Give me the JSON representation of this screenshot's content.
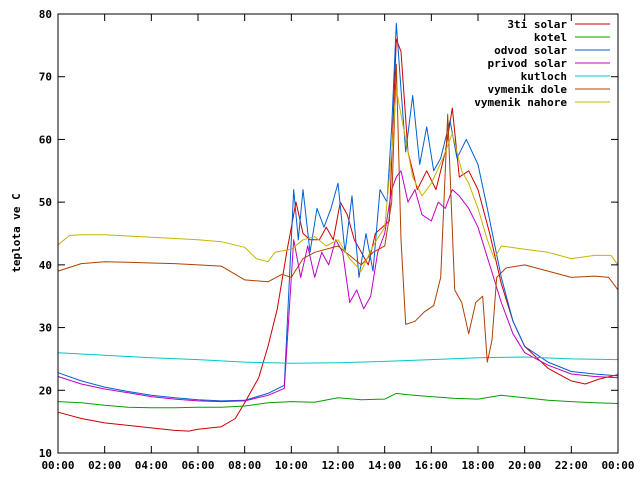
{
  "chart_data": {
    "type": "line",
    "ylabel": "teplota ve C",
    "xlabel": "",
    "x_ticks": [
      "00:00",
      "02:00",
      "04:00",
      "06:00",
      "08:00",
      "10:00",
      "12:00",
      "14:00",
      "16:00",
      "18:00",
      "20:00",
      "22:00",
      "00:00"
    ],
    "y_ticks": [
      10,
      20,
      30,
      40,
      50,
      60,
      70,
      80
    ],
    "xlim": [
      0,
      24
    ],
    "ylim": [
      10,
      80
    ],
    "grid": false,
    "legend": "top-right",
    "series": [
      {
        "name": "3ti solar",
        "color": "#cc0000",
        "points": [
          [
            0,
            16.5
          ],
          [
            1,
            15.5
          ],
          [
            2,
            14.8
          ],
          [
            3,
            14.4
          ],
          [
            4,
            14.0
          ],
          [
            5,
            13.6
          ],
          [
            5.6,
            13.5
          ],
          [
            6,
            13.8
          ],
          [
            7,
            14.2
          ],
          [
            7.6,
            15.5
          ],
          [
            8,
            18.0
          ],
          [
            8.6,
            22.0
          ],
          [
            9,
            27.0
          ],
          [
            9.4,
            33.0
          ],
          [
            9.8,
            42.0
          ],
          [
            10.2,
            50.0
          ],
          [
            10.5,
            45.0
          ],
          [
            10.8,
            44.0
          ],
          [
            11.2,
            44.0
          ],
          [
            11.5,
            46.0
          ],
          [
            11.8,
            44.0
          ],
          [
            12.1,
            50.0
          ],
          [
            12.4,
            48.0
          ],
          [
            12.7,
            44.0
          ],
          [
            13.0,
            42.0
          ],
          [
            13.3,
            40.0
          ],
          [
            13.6,
            45.0
          ],
          [
            13.9,
            46.0
          ],
          [
            14.2,
            47.0
          ],
          [
            14.5,
            76.0
          ],
          [
            14.7,
            74.0
          ],
          [
            15.0,
            58.0
          ],
          [
            15.4,
            52.0
          ],
          [
            15.8,
            55.0
          ],
          [
            16.2,
            52.0
          ],
          [
            16.6,
            58.0
          ],
          [
            16.9,
            65.0
          ],
          [
            17.2,
            54.0
          ],
          [
            17.6,
            55.0
          ],
          [
            18.0,
            52.0
          ],
          [
            18.5,
            45.0
          ],
          [
            19.0,
            37.0
          ],
          [
            19.5,
            31.0
          ],
          [
            20.0,
            27.0
          ],
          [
            21.0,
            23.5
          ],
          [
            22.0,
            21.5
          ],
          [
            22.6,
            21.0
          ],
          [
            23.2,
            21.8
          ],
          [
            24,
            22.5
          ]
        ]
      },
      {
        "name": "kotel",
        "color": "#00a000",
        "points": [
          [
            0,
            18.2
          ],
          [
            1,
            18.0
          ],
          [
            2,
            17.6
          ],
          [
            3,
            17.3
          ],
          [
            4,
            17.2
          ],
          [
            5,
            17.2
          ],
          [
            6,
            17.3
          ],
          [
            7,
            17.3
          ],
          [
            8,
            17.5
          ],
          [
            9,
            18.0
          ],
          [
            10,
            18.2
          ],
          [
            11,
            18.1
          ],
          [
            12,
            18.8
          ],
          [
            13,
            18.5
          ],
          [
            14,
            18.6
          ],
          [
            14.5,
            19.5
          ],
          [
            15,
            19.3
          ],
          [
            16,
            19.0
          ],
          [
            17,
            18.7
          ],
          [
            18,
            18.6
          ],
          [
            19,
            19.2
          ],
          [
            20,
            18.8
          ],
          [
            21,
            18.4
          ],
          [
            22,
            18.2
          ],
          [
            23,
            18.0
          ],
          [
            24,
            17.9
          ]
        ]
      },
      {
        "name": "odvod solar",
        "color": "#0060d0",
        "points": [
          [
            0,
            22.8
          ],
          [
            1,
            21.5
          ],
          [
            2,
            20.5
          ],
          [
            3,
            19.8
          ],
          [
            4,
            19.2
          ],
          [
            5,
            18.8
          ],
          [
            6,
            18.5
          ],
          [
            7,
            18.3
          ],
          [
            8,
            18.4
          ],
          [
            9,
            19.5
          ],
          [
            9.7,
            20.8
          ],
          [
            10.1,
            52.0
          ],
          [
            10.3,
            44.0
          ],
          [
            10.5,
            52.0
          ],
          [
            10.8,
            42.0
          ],
          [
            11.1,
            49.0
          ],
          [
            11.4,
            46.0
          ],
          [
            11.7,
            49.0
          ],
          [
            12.0,
            53.0
          ],
          [
            12.3,
            42.0
          ],
          [
            12.6,
            51.0
          ],
          [
            12.9,
            38.0
          ],
          [
            13.2,
            45.0
          ],
          [
            13.5,
            39.0
          ],
          [
            13.8,
            52.0
          ],
          [
            14.1,
            50.0
          ],
          [
            14.3,
            62.0
          ],
          [
            14.5,
            78.5
          ],
          [
            14.7,
            68.0
          ],
          [
            14.9,
            58.0
          ],
          [
            15.2,
            67.0
          ],
          [
            15.5,
            56.0
          ],
          [
            15.8,
            62.0
          ],
          [
            16.1,
            55.0
          ],
          [
            16.4,
            57.0
          ],
          [
            16.8,
            63.0
          ],
          [
            17.1,
            57.0
          ],
          [
            17.5,
            60.0
          ],
          [
            18.0,
            56.0
          ],
          [
            18.4,
            49.0
          ],
          [
            19.0,
            38.0
          ],
          [
            19.5,
            31.0
          ],
          [
            20.0,
            27.0
          ],
          [
            21.0,
            24.5
          ],
          [
            22.0,
            23.0
          ],
          [
            23.0,
            22.6
          ],
          [
            24,
            22.3
          ]
        ]
      },
      {
        "name": "privod solar",
        "color": "#c000c0",
        "points": [
          [
            0,
            22.2
          ],
          [
            1,
            21.0
          ],
          [
            2,
            20.2
          ],
          [
            3,
            19.6
          ],
          [
            4,
            19.0
          ],
          [
            5,
            18.6
          ],
          [
            6,
            18.3
          ],
          [
            7,
            18.2
          ],
          [
            8,
            18.3
          ],
          [
            9,
            19.2
          ],
          [
            9.7,
            20.3
          ],
          [
            10.1,
            44.0
          ],
          [
            10.4,
            38.0
          ],
          [
            10.7,
            43.0
          ],
          [
            11.0,
            38.0
          ],
          [
            11.3,
            42.0
          ],
          [
            11.6,
            40.0
          ],
          [
            11.9,
            44.0
          ],
          [
            12.2,
            42.0
          ],
          [
            12.5,
            34.0
          ],
          [
            12.8,
            36.0
          ],
          [
            13.1,
            33.0
          ],
          [
            13.4,
            35.0
          ],
          [
            13.7,
            42.0
          ],
          [
            14.0,
            45.0
          ],
          [
            14.3,
            52.0
          ],
          [
            14.5,
            54.0
          ],
          [
            14.7,
            55.0
          ],
          [
            15.0,
            50.0
          ],
          [
            15.3,
            52.0
          ],
          [
            15.6,
            48.0
          ],
          [
            16.0,
            47.0
          ],
          [
            16.3,
            50.0
          ],
          [
            16.6,
            49.0
          ],
          [
            16.9,
            52.0
          ],
          [
            17.2,
            51.0
          ],
          [
            17.6,
            49.0
          ],
          [
            18.0,
            46.0
          ],
          [
            18.5,
            40.0
          ],
          [
            19.0,
            34.0
          ],
          [
            19.5,
            29.0
          ],
          [
            20.0,
            26.0
          ],
          [
            21.0,
            24.0
          ],
          [
            22.0,
            22.6
          ],
          [
            23.0,
            22.2
          ],
          [
            24,
            22.0
          ]
        ]
      },
      {
        "name": "kutloch",
        "color": "#00c8c8",
        "points": [
          [
            0,
            26.0
          ],
          [
            2,
            25.6
          ],
          [
            4,
            25.2
          ],
          [
            6,
            24.9
          ],
          [
            8,
            24.5
          ],
          [
            10,
            24.3
          ],
          [
            12,
            24.4
          ],
          [
            14,
            24.6
          ],
          [
            16,
            24.9
          ],
          [
            18,
            25.2
          ],
          [
            20,
            25.3
          ],
          [
            22,
            25.0
          ],
          [
            24,
            24.9
          ]
        ]
      },
      {
        "name": "vymenik dole",
        "color": "#b04000",
        "points": [
          [
            0,
            39.0
          ],
          [
            1,
            40.2
          ],
          [
            2,
            40.5
          ],
          [
            3,
            40.4
          ],
          [
            4,
            40.3
          ],
          [
            5,
            40.2
          ],
          [
            6,
            40.0
          ],
          [
            7,
            39.8
          ],
          [
            8,
            37.6
          ],
          [
            9,
            37.3
          ],
          [
            9.6,
            38.5
          ],
          [
            10.0,
            38.0
          ],
          [
            10.5,
            41.0
          ],
          [
            11.0,
            42.0
          ],
          [
            12.0,
            43.0
          ],
          [
            13.0,
            40.0
          ],
          [
            13.5,
            42.0
          ],
          [
            14.0,
            43.0
          ],
          [
            14.3,
            50.0
          ],
          [
            14.5,
            72.0
          ],
          [
            14.7,
            44.0
          ],
          [
            14.9,
            30.5
          ],
          [
            15.3,
            31.0
          ],
          [
            15.7,
            32.5
          ],
          [
            16.1,
            33.5
          ],
          [
            16.4,
            38.0
          ],
          [
            16.7,
            64.0
          ],
          [
            17.0,
            36.0
          ],
          [
            17.3,
            34.0
          ],
          [
            17.6,
            29.0
          ],
          [
            17.9,
            34.0
          ],
          [
            18.2,
            35.0
          ],
          [
            18.4,
            24.5
          ],
          [
            18.6,
            28.0
          ],
          [
            18.8,
            38.0
          ],
          [
            19.2,
            39.5
          ],
          [
            20.0,
            40.0
          ],
          [
            21.0,
            39.0
          ],
          [
            22.0,
            38.0
          ],
          [
            23.0,
            38.2
          ],
          [
            23.6,
            38.0
          ],
          [
            24,
            36.0
          ]
        ]
      },
      {
        "name": "vymenik nahore",
        "color": "#c8b400",
        "points": [
          [
            0,
            43.2
          ],
          [
            0.5,
            44.7
          ],
          [
            1,
            44.8
          ],
          [
            2,
            44.8
          ],
          [
            3,
            44.6
          ],
          [
            4,
            44.4
          ],
          [
            5,
            44.2
          ],
          [
            6,
            44.0
          ],
          [
            7,
            43.7
          ],
          [
            8,
            42.8
          ],
          [
            8.5,
            41.0
          ],
          [
            9.0,
            40.5
          ],
          [
            9.3,
            42.0
          ],
          [
            10.0,
            42.5
          ],
          [
            10.5,
            44.0
          ],
          [
            11.0,
            44.5
          ],
          [
            11.5,
            43.0
          ],
          [
            12.0,
            44.0
          ],
          [
            12.5,
            41.0
          ],
          [
            13.0,
            39.0
          ],
          [
            13.5,
            43.0
          ],
          [
            14.0,
            46.0
          ],
          [
            14.3,
            58.0
          ],
          [
            14.5,
            68.0
          ],
          [
            14.8,
            62.0
          ],
          [
            15.2,
            54.0
          ],
          [
            15.6,
            51.0
          ],
          [
            16.0,
            53.0
          ],
          [
            16.5,
            57.0
          ],
          [
            16.9,
            61.0
          ],
          [
            17.3,
            55.0
          ],
          [
            17.6,
            53.0
          ],
          [
            18.0,
            49.0
          ],
          [
            18.4,
            44.0
          ],
          [
            18.7,
            41.0
          ],
          [
            19.0,
            43.0
          ],
          [
            20.0,
            42.5
          ],
          [
            21.0,
            42.0
          ],
          [
            22.0,
            41.0
          ],
          [
            23.0,
            41.5
          ],
          [
            23.7,
            41.5
          ],
          [
            24,
            40.0
          ]
        ]
      }
    ]
  }
}
